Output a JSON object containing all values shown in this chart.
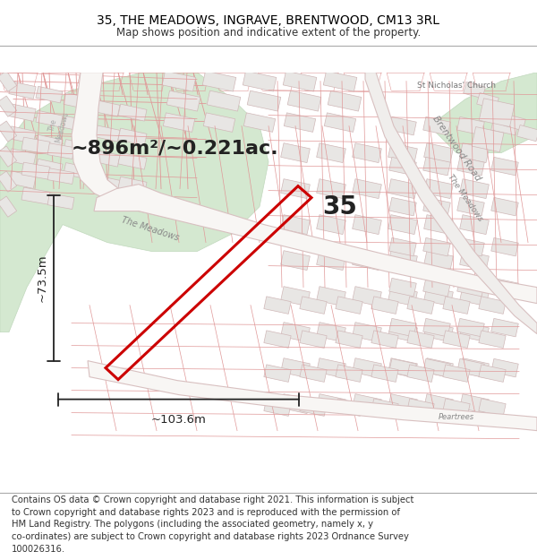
{
  "title": "35, THE MEADOWS, INGRAVE, BRENTWOOD, CM13 3RL",
  "subtitle": "Map shows position and indicative extent of the property.",
  "footer": "Contains OS data © Crown copyright and database right 2021. This information is subject\nto Crown copyright and database rights 2023 and is reproduced with the permission of\nHM Land Registry. The polygons (including the associated geometry, namely x, y\nco-ordinates) are subject to Crown copyright and database rights 2023 Ordnance Survey\n100026316.",
  "title_fontsize": 10,
  "subtitle_fontsize": 8.5,
  "footer_fontsize": 7.2,
  "bg_color": "#f5f3f0",
  "building_fill": "#e8e6e4",
  "building_edge": "#d0b8b8",
  "road_fill": "#ffffff",
  "road_edge": "#d0b0b0",
  "green_fill": "#d4e8d0",
  "green_edge": "#c0d8bc",
  "plot_edge": "#cc0000",
  "plot_lw": 2.2,
  "dim_color": "#222222",
  "area_label": "~896m²/~0.221ac.",
  "number_label": "35",
  "dim_v_label": "~73.5m",
  "dim_h_label": "~103.6m"
}
